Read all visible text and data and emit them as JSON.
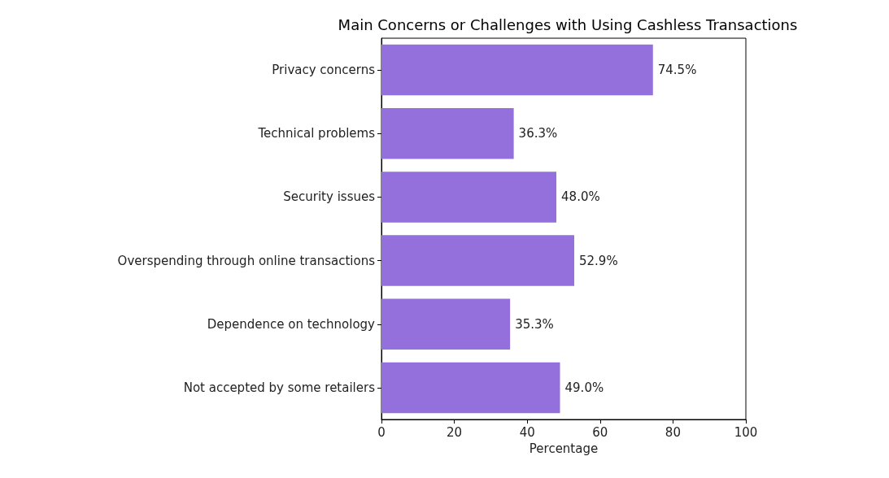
{
  "chart_data": {
    "type": "bar",
    "orientation": "horizontal",
    "title": "Main Concerns or Challenges with Using Cashless Transactions",
    "xlabel": "Percentage",
    "categories": [
      "Privacy concerns",
      "Technical problems",
      "Security issues",
      "Overspending through online transactions",
      "Dependence on technology",
      "Not accepted by some retailers"
    ],
    "values": [
      74.5,
      36.3,
      48.0,
      52.9,
      35.3,
      49.0
    ],
    "value_labels": [
      "74.5%",
      "36.3%",
      "48.0%",
      "52.9%",
      "35.3%",
      "49.0%"
    ],
    "color": "#9370db",
    "xlim": [
      0,
      100
    ],
    "xticks": [
      0,
      20,
      40,
      60,
      80,
      100
    ],
    "grid": false
  }
}
